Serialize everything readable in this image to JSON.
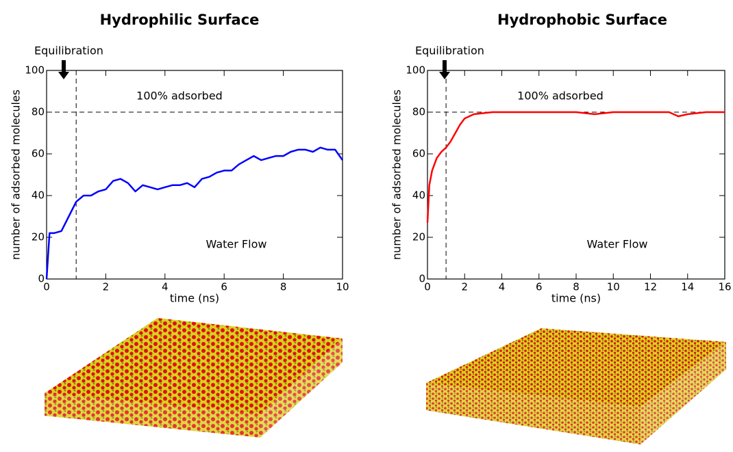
{
  "chart_data": [
    {
      "type": "line",
      "title": "Hydrophilic Surface",
      "xlabel": "time (ns)",
      "ylabel": "number of adsorbed molecules",
      "annotations": [
        "Equilibration",
        "100% adsorbed",
        "Water Flow"
      ],
      "vlines": [
        1
      ],
      "hlines": [
        80
      ],
      "color": "#0000ff",
      "xlim": [
        0,
        10
      ],
      "ylim": [
        0,
        100
      ],
      "xticks": [
        0,
        2,
        4,
        6,
        8,
        10
      ],
      "yticks": [
        0,
        20,
        40,
        60,
        80,
        100
      ],
      "x": [
        0,
        0.1,
        0.25,
        0.5,
        0.75,
        1,
        1.25,
        1.5,
        1.75,
        2,
        2.25,
        2.5,
        2.75,
        3,
        3.25,
        3.5,
        3.75,
        4,
        4.25,
        4.5,
        4.75,
        5,
        5.25,
        5.5,
        5.75,
        6,
        6.25,
        6.5,
        6.75,
        7,
        7.25,
        7.5,
        7.75,
        8,
        8.25,
        8.5,
        8.75,
        9,
        9.25,
        9.5,
        9.75,
        10
      ],
      "values": [
        0,
        22,
        22,
        23,
        30,
        37,
        40,
        40,
        42,
        43,
        47,
        48,
        46,
        42,
        45,
        44,
        43,
        44,
        45,
        45,
        46,
        44,
        48,
        49,
        51,
        52,
        52,
        55,
        57,
        59,
        57,
        58,
        59,
        59,
        61,
        62,
        62,
        61,
        63,
        62,
        62,
        57
      ]
    },
    {
      "type": "line",
      "title": "Hydrophobic Surface",
      "xlabel": "time (ns)",
      "ylabel": "number of adsorbed molecules",
      "annotations": [
        "Equilibration",
        "100% adsorbed",
        "Water Flow"
      ],
      "vlines": [
        1
      ],
      "hlines": [
        80
      ],
      "color": "#ff0000",
      "xlim": [
        0,
        16
      ],
      "ylim": [
        0,
        100
      ],
      "xticks": [
        0,
        2,
        4,
        6,
        8,
        10,
        12,
        14,
        16
      ],
      "yticks": [
        0,
        20,
        40,
        60,
        80,
        100
      ],
      "x": [
        0,
        0.1,
        0.25,
        0.5,
        0.75,
        1,
        1.25,
        1.5,
        1.75,
        2,
        2.25,
        2.5,
        3,
        3.5,
        4,
        5,
        6,
        7,
        8,
        9,
        10,
        11,
        12,
        13,
        13.5,
        14,
        15,
        16
      ],
      "values": [
        27,
        45,
        52,
        58,
        61,
        63,
        66,
        70,
        74,
        77,
        78,
        79,
        79.5,
        80,
        80,
        80,
        80,
        80,
        80,
        79,
        80,
        80,
        80,
        80,
        78,
        79,
        80,
        80
      ]
    }
  ]
}
